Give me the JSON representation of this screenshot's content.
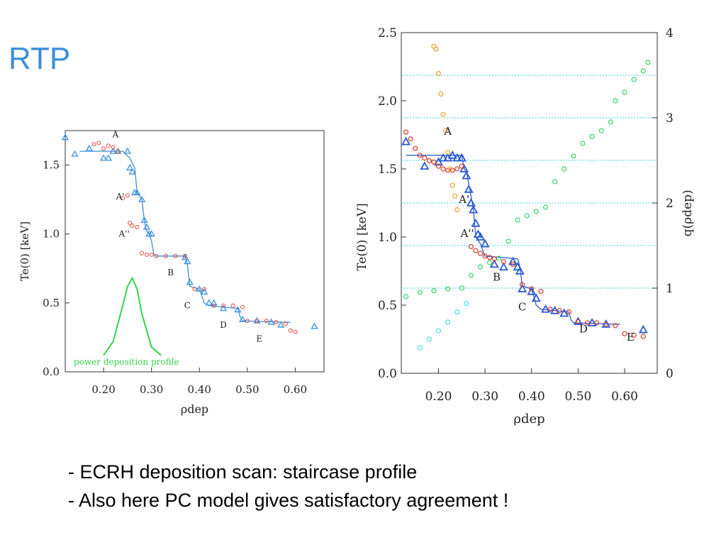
{
  "slide": {
    "title": "RTP",
    "bullets": [
      "- ECRH deposition scan: staircase profile",
      "- Also here PC model gives satisfactory agreement !"
    ]
  },
  "chart_data": [
    {
      "type": "scatter",
      "title": "",
      "xlabel": "ρdep",
      "ylabel": "Te(0) [keV]",
      "xlim": [
        0.12,
        0.66
      ],
      "ylim": [
        0.0,
        1.75
      ],
      "xticks": [
        "0.20",
        "0.30",
        "0.40",
        "0.50",
        "0.60"
      ],
      "yticks": [
        "0.0",
        "0.5",
        "1.0",
        "1.5"
      ],
      "grid": false,
      "annotations": [
        "A",
        "A'",
        "A''",
        "B",
        "C",
        "D",
        "E",
        "power deposition profile"
      ],
      "series": [
        {
          "name": "model",
          "color": "#3b8fdc",
          "x": [
            0.15,
            0.22,
            0.24,
            0.255,
            0.265,
            0.27,
            0.28,
            0.285,
            0.29,
            0.295,
            0.3,
            0.305,
            0.31,
            0.37,
            0.375,
            0.38,
            0.4,
            0.41,
            0.42,
            0.48,
            0.485,
            0.49,
            0.58,
            0.59
          ],
          "y": [
            1.6,
            1.6,
            1.6,
            1.55,
            1.48,
            1.3,
            1.25,
            1.1,
            1.02,
            1.0,
            0.95,
            0.85,
            0.84,
            0.84,
            0.78,
            0.62,
            0.6,
            0.5,
            0.48,
            0.46,
            0.4,
            0.37,
            0.36,
            0.36
          ]
        },
        {
          "name": "triangles",
          "color": "#3b8fdc",
          "x": [
            0.12,
            0.14,
            0.17,
            0.2,
            0.21,
            0.22,
            0.23,
            0.25,
            0.255,
            0.26,
            0.265,
            0.27,
            0.28,
            0.285,
            0.29,
            0.295,
            0.3,
            0.37,
            0.375,
            0.38,
            0.4,
            0.41,
            0.42,
            0.43,
            0.45,
            0.48,
            0.49,
            0.52,
            0.55,
            0.57,
            0.64
          ],
          "y": [
            1.7,
            1.58,
            1.62,
            1.55,
            1.55,
            1.6,
            1.6,
            1.6,
            1.48,
            1.45,
            1.3,
            1.3,
            1.25,
            1.1,
            1.05,
            1.0,
            1.0,
            0.83,
            0.8,
            0.65,
            0.6,
            0.58,
            0.5,
            0.5,
            0.46,
            0.45,
            0.38,
            0.37,
            0.36,
            0.34,
            0.33
          ]
        },
        {
          "name": "circles",
          "color": "#e0463c",
          "x": [
            0.18,
            0.19,
            0.2,
            0.21,
            0.22,
            0.23,
            0.24,
            0.25,
            0.255,
            0.26,
            0.27,
            0.28,
            0.29,
            0.3,
            0.31,
            0.33,
            0.35,
            0.37,
            0.39,
            0.41,
            0.43,
            0.45,
            0.47,
            0.49,
            0.5,
            0.52,
            0.54,
            0.56,
            0.58,
            0.59,
            0.6
          ],
          "y": [
            1.65,
            1.66,
            1.62,
            1.64,
            1.63,
            1.6,
            1.26,
            1.28,
            1.08,
            1.06,
            1.05,
            0.86,
            0.85,
            0.85,
            0.84,
            0.84,
            0.84,
            0.84,
            0.6,
            0.6,
            0.48,
            0.48,
            0.48,
            0.47,
            0.37,
            0.37,
            0.37,
            0.36,
            0.35,
            0.3,
            0.29
          ]
        },
        {
          "name": "power deposition profile",
          "color": "#33d34a",
          "x": [
            0.2,
            0.22,
            0.24,
            0.25,
            0.26,
            0.27,
            0.28,
            0.3,
            0.32
          ],
          "y": [
            0.12,
            0.22,
            0.48,
            0.62,
            0.68,
            0.6,
            0.42,
            0.18,
            0.12
          ]
        }
      ]
    },
    {
      "type": "scatter",
      "title": "",
      "xlabel": "ρdep",
      "ylabel": "Te(0) [keV]",
      "y2label": "q(ρdep)",
      "xlim": [
        0.12,
        0.67
      ],
      "ylim": [
        0.0,
        2.5
      ],
      "y2lim": [
        0,
        4
      ],
      "xticks": [
        "0.20",
        "0.30",
        "0.40",
        "0.50",
        "0.60"
      ],
      "yticks": [
        "0.0",
        "0.5",
        "1.0",
        "1.5",
        "2.0",
        "2.5"
      ],
      "y2ticks": [
        "0",
        "1",
        "2",
        "3",
        "4"
      ],
      "grid": false,
      "reference_lines_y2": [
        1.0,
        1.5,
        2.0,
        2.5,
        3.0,
        3.5
      ],
      "annotations": [
        "A",
        "A'",
        "A''",
        "B",
        "C",
        "D",
        "E"
      ],
      "series": [
        {
          "name": "model",
          "color": "#3060d0",
          "x": [
            0.13,
            0.25,
            0.255,
            0.26,
            0.27,
            0.275,
            0.28,
            0.29,
            0.3,
            0.37,
            0.375,
            0.38,
            0.4,
            0.41,
            0.42,
            0.48,
            0.485,
            0.49,
            0.58,
            0.59
          ],
          "y": [
            1.6,
            1.6,
            1.5,
            1.48,
            1.3,
            1.2,
            1.0,
            0.95,
            0.86,
            0.84,
            0.78,
            0.64,
            0.62,
            0.5,
            0.47,
            0.45,
            0.39,
            0.37,
            0.36,
            0.36
          ]
        },
        {
          "name": "triangles",
          "color": "#2a5bd4",
          "x": [
            0.13,
            0.17,
            0.2,
            0.21,
            0.22,
            0.23,
            0.24,
            0.25,
            0.255,
            0.26,
            0.265,
            0.27,
            0.275,
            0.28,
            0.285,
            0.29,
            0.3,
            0.32,
            0.34,
            0.36,
            0.37,
            0.375,
            0.38,
            0.4,
            0.41,
            0.43,
            0.45,
            0.47,
            0.5,
            0.53,
            0.56,
            0.64
          ],
          "y": [
            1.7,
            1.52,
            1.55,
            1.58,
            1.58,
            1.6,
            1.58,
            1.58,
            1.5,
            1.45,
            1.35,
            1.25,
            1.2,
            1.1,
            1.02,
            1.0,
            0.95,
            0.8,
            0.78,
            0.82,
            0.78,
            0.75,
            0.62,
            0.6,
            0.55,
            0.47,
            0.46,
            0.44,
            0.38,
            0.37,
            0.36,
            0.32
          ]
        },
        {
          "name": "circles",
          "color": "#d63a2a",
          "x": [
            0.13,
            0.14,
            0.15,
            0.16,
            0.17,
            0.18,
            0.19,
            0.2,
            0.21,
            0.22,
            0.23,
            0.24,
            0.25,
            0.27,
            0.28,
            0.29,
            0.3,
            0.31,
            0.32,
            0.34,
            0.36,
            0.38,
            0.4,
            0.42,
            0.44,
            0.46,
            0.48,
            0.5,
            0.52,
            0.54,
            0.56,
            0.58,
            0.6,
            0.62,
            0.64
          ],
          "y": [
            1.77,
            1.72,
            1.65,
            1.6,
            1.58,
            1.56,
            1.55,
            1.52,
            1.5,
            1.49,
            1.49,
            1.5,
            1.52,
            0.93,
            0.9,
            0.88,
            0.86,
            0.85,
            0.84,
            0.82,
            0.8,
            0.65,
            0.62,
            0.6,
            0.47,
            0.46,
            0.45,
            0.38,
            0.37,
            0.37,
            0.36,
            0.35,
            0.29,
            0.28,
            0.27
          ]
        },
        {
          "name": "orange circles",
          "color": "#f0a232",
          "x": [
            0.19,
            0.195,
            0.2,
            0.205,
            0.21,
            0.215,
            0.22,
            0.225,
            0.23,
            0.235,
            0.24
          ],
          "y": [
            2.4,
            2.38,
            2.2,
            2.05,
            1.9,
            1.78,
            1.62,
            1.5,
            1.38,
            1.3,
            1.2
          ]
        },
        {
          "name": "q green",
          "color": "#35d36a",
          "axis": "y2",
          "x": [
            0.13,
            0.16,
            0.19,
            0.22,
            0.25,
            0.27,
            0.29,
            0.31,
            0.33,
            0.35,
            0.37,
            0.39,
            0.41,
            0.43,
            0.45,
            0.47,
            0.49,
            0.51,
            0.53,
            0.55,
            0.57,
            0.58,
            0.6,
            0.62,
            0.64,
            0.65
          ],
          "y": [
            0.9,
            0.95,
            0.97,
            0.99,
            1.0,
            1.15,
            1.25,
            1.3,
            1.35,
            1.55,
            1.8,
            1.85,
            1.9,
            1.95,
            2.25,
            2.4,
            2.55,
            2.7,
            2.78,
            2.85,
            2.95,
            3.2,
            3.3,
            3.45,
            3.55,
            3.65
          ]
        },
        {
          "name": "q cyan",
          "color": "#45dfe0",
          "axis": "y2",
          "x": [
            0.16,
            0.18,
            0.2,
            0.22,
            0.24,
            0.26
          ],
          "y": [
            0.3,
            0.4,
            0.5,
            0.6,
            0.72,
            0.82
          ]
        }
      ]
    }
  ]
}
